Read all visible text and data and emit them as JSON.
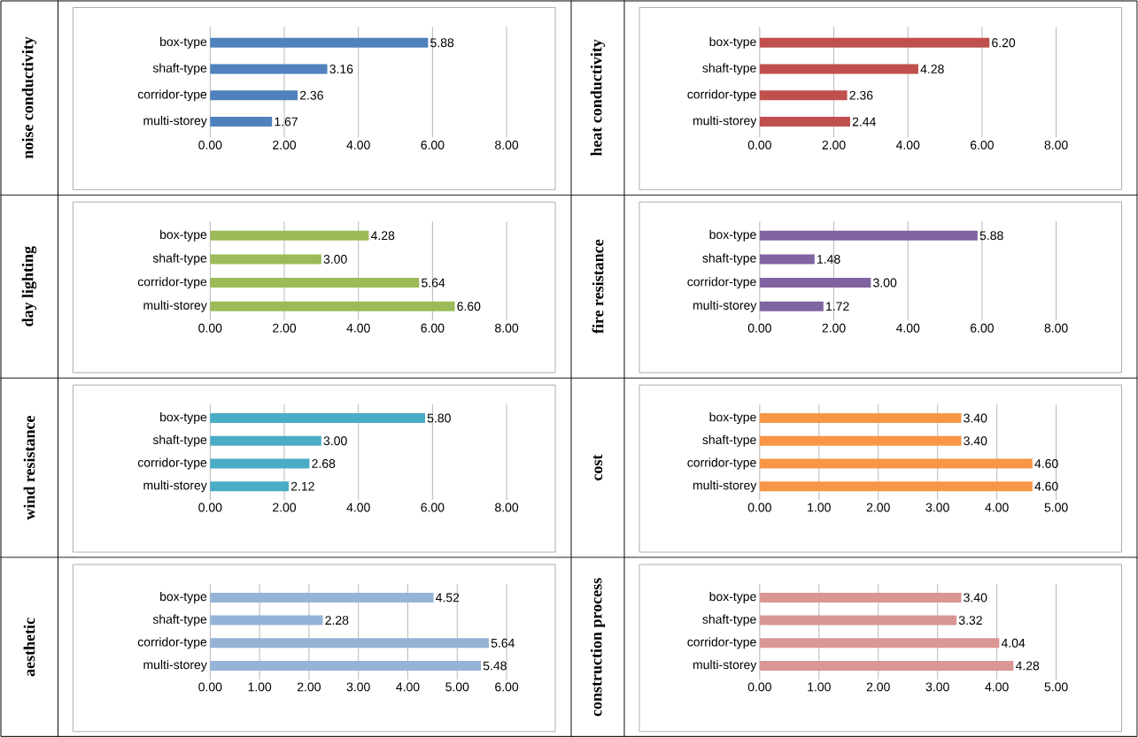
{
  "chart_data": [
    {
      "type": "bar",
      "orientation": "horizontal",
      "ylabel": "noise conductivity",
      "categories": [
        "box-type",
        "shaft-type",
        "corridor-type",
        "multi-storey"
      ],
      "values": [
        5.88,
        3.16,
        2.36,
        1.67
      ],
      "value_labels": [
        "5.88",
        "3.16",
        "2.36",
        "1.67"
      ],
      "color": "#4f81bd",
      "xlim": [
        0,
        8
      ],
      "xticks": [
        {
          "value": 0,
          "label": "0.00"
        },
        {
          "value": 2,
          "label": "2.00"
        },
        {
          "value": 4,
          "label": "4.00"
        },
        {
          "value": 6,
          "label": "6.00"
        },
        {
          "value": 8,
          "label": "8.00"
        }
      ],
      "grid": "x"
    },
    {
      "type": "bar",
      "orientation": "horizontal",
      "ylabel": "heat conductivity",
      "categories": [
        "box-type",
        "shaft-type",
        "corridor-type",
        "multi-storey"
      ],
      "values": [
        6.2,
        4.28,
        2.36,
        2.44
      ],
      "value_labels": [
        "6.20",
        "4.28",
        "2.36",
        "2.44"
      ],
      "color": "#c0504d",
      "xlim": [
        0,
        8
      ],
      "xticks": [
        {
          "value": 0,
          "label": "0.00"
        },
        {
          "value": 2,
          "label": "2.00"
        },
        {
          "value": 4,
          "label": "4.00"
        },
        {
          "value": 6,
          "label": "6.00"
        },
        {
          "value": 8,
          "label": "8.00"
        }
      ],
      "grid": "x"
    },
    {
      "type": "bar",
      "orientation": "horizontal",
      "ylabel": "day lighting",
      "categories": [
        "box-type",
        "shaft-type",
        "corridor-type",
        "multi-storey"
      ],
      "values": [
        4.28,
        3.0,
        5.64,
        6.6
      ],
      "value_labels": [
        "4.28",
        "3.00",
        "5.64",
        "6.60"
      ],
      "color": "#9bbb59",
      "xlim": [
        0,
        8
      ],
      "xticks": [
        {
          "value": 0,
          "label": "0.00"
        },
        {
          "value": 2,
          "label": "2.00"
        },
        {
          "value": 4,
          "label": "4.00"
        },
        {
          "value": 6,
          "label": "6.00"
        },
        {
          "value": 8,
          "label": "8.00"
        }
      ],
      "grid": "x"
    },
    {
      "type": "bar",
      "orientation": "horizontal",
      "ylabel": "fire resistance",
      "categories": [
        "box-type",
        "shaft-type",
        "corridor-type",
        "multi-storey"
      ],
      "values": [
        5.88,
        1.48,
        3.0,
        1.72
      ],
      "value_labels": [
        "5.88",
        "1.48",
        "3.00",
        "1.72"
      ],
      "color": "#8064a2",
      "xlim": [
        0,
        8
      ],
      "xticks": [
        {
          "value": 0,
          "label": "0.00"
        },
        {
          "value": 2,
          "label": "2.00"
        },
        {
          "value": 4,
          "label": "4.00"
        },
        {
          "value": 6,
          "label": "6.00"
        },
        {
          "value": 8,
          "label": "8.00"
        }
      ],
      "grid": "x"
    },
    {
      "type": "bar",
      "orientation": "horizontal",
      "ylabel": "wind resistance",
      "categories": [
        "box-type",
        "shaft-type",
        "corridor-type",
        "multi-storey"
      ],
      "values": [
        5.8,
        3.0,
        2.68,
        2.12
      ],
      "value_labels": [
        "5.80",
        "3.00",
        "2.68",
        "2.12"
      ],
      "color": "#4bacc6",
      "xlim": [
        0,
        8
      ],
      "xticks": [
        {
          "value": 0,
          "label": "0.00"
        },
        {
          "value": 2,
          "label": "2.00"
        },
        {
          "value": 4,
          "label": "4.00"
        },
        {
          "value": 6,
          "label": "6.00"
        },
        {
          "value": 8,
          "label": "8.00"
        }
      ],
      "grid": "x"
    },
    {
      "type": "bar",
      "orientation": "horizontal",
      "ylabel": "cost",
      "categories": [
        "box-type",
        "shaft-type",
        "corridor-type",
        "multi-storey"
      ],
      "values": [
        3.4,
        3.4,
        4.6,
        4.6
      ],
      "value_labels": [
        "3.40",
        "3.40",
        "4.60",
        "4.60"
      ],
      "color": "#f79646",
      "xlim": [
        0,
        5
      ],
      "xticks": [
        {
          "value": 0,
          "label": "0.00"
        },
        {
          "value": 1,
          "label": "1.00"
        },
        {
          "value": 2,
          "label": "2.00"
        },
        {
          "value": 3,
          "label": "3.00"
        },
        {
          "value": 4,
          "label": "4.00"
        },
        {
          "value": 5,
          "label": "5.00"
        }
      ],
      "grid": "x"
    },
    {
      "type": "bar",
      "orientation": "horizontal",
      "ylabel": "aesthetic",
      "categories": [
        "box-type",
        "shaft-type",
        "corridor-type",
        "multi-storey"
      ],
      "values": [
        4.52,
        2.28,
        5.64,
        5.48
      ],
      "value_labels": [
        "4.52",
        "2.28",
        "5.64",
        "5.48"
      ],
      "color": "#95b3d7",
      "xlim": [
        0,
        6
      ],
      "xticks": [
        {
          "value": 0,
          "label": "0.00"
        },
        {
          "value": 1,
          "label": "1.00"
        },
        {
          "value": 2,
          "label": "2.00"
        },
        {
          "value": 3,
          "label": "3.00"
        },
        {
          "value": 4,
          "label": "4.00"
        },
        {
          "value": 5,
          "label": "5.00"
        },
        {
          "value": 6,
          "label": "6.00"
        }
      ],
      "grid": "x"
    },
    {
      "type": "bar",
      "orientation": "horizontal",
      "ylabel": "construction process",
      "categories": [
        "box-type",
        "shaft-type",
        "corridor-type",
        "multi-storey"
      ],
      "values": [
        3.4,
        3.32,
        4.04,
        4.28
      ],
      "value_labels": [
        "3.40",
        "3.32",
        "4.04",
        "4.28"
      ],
      "color": "#d99694",
      "xlim": [
        0,
        5
      ],
      "xticks": [
        {
          "value": 0,
          "label": "0.00"
        },
        {
          "value": 1,
          "label": "1.00"
        },
        {
          "value": 2,
          "label": "2.00"
        },
        {
          "value": 3,
          "label": "3.00"
        },
        {
          "value": 4,
          "label": "4.00"
        },
        {
          "value": 5,
          "label": "5.00"
        }
      ],
      "grid": "x"
    }
  ]
}
